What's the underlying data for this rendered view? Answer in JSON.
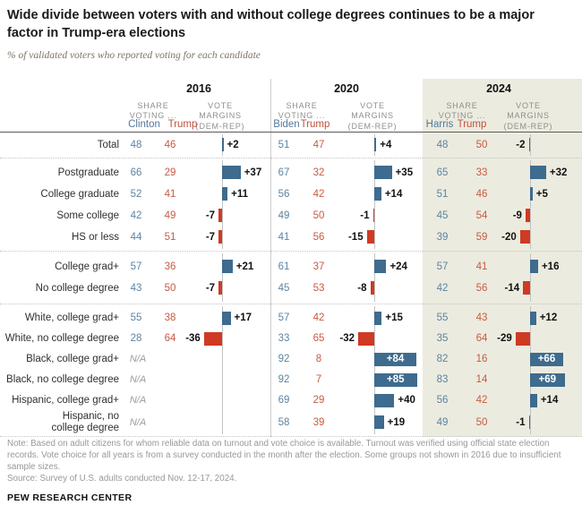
{
  "page": {
    "title": "Wide divide between voters with and without college degrees continues to be a major factor in Trump-era elections",
    "subtitle": "% of validated voters who reported voting for each candidate",
    "note": "Note: Based on adult citizens for whom reliable data on turnout and vote choice is available. Turnout was verified using official state election records. Vote choice for all years is from a survey conducted in the month after the election. Some groups not shown in 2016 due to insufficient sample sizes.",
    "source": "Source: Survey of U.S. adults conducted Nov. 12-17, 2024.",
    "footer": "PEW RESEARCH CENTER"
  },
  "column_headers": {
    "share_line1": "SHARE",
    "share_line2": "VOTING ...",
    "margins_line1": "VOTE",
    "margins_line2": "MARGINS",
    "margins_line3": "(DEM-REP)"
  },
  "colors": {
    "dem_bar": "#3e6b8e",
    "rep_bar": "#cf3a22",
    "dem_text": "#5b84a3",
    "rep_text": "#c75b42",
    "panel_2024_bg": "#ecebdf"
  },
  "chart_data": {
    "type": "table",
    "description": "Diverging bar table: share voting Dem/Rep and vote margin (Dem-Rep) by education group for 2016, 2020, 2024. Values as [dem_share, rep_share, margin]; null = N/A.",
    "na_label": "N/A",
    "years": [
      {
        "label": "2016",
        "dem_candidate": "Clinton",
        "rep_candidate": "Trump"
      },
      {
        "label": "2020",
        "dem_candidate": "Biden",
        "rep_candidate": "Trump"
      },
      {
        "label": "2024",
        "dem_candidate": "Harris",
        "rep_candidate": "Trump"
      }
    ],
    "sections": [
      {
        "rows": [
          {
            "label": "Total",
            "values": [
              [
                48,
                46,
                2
              ],
              [
                51,
                47,
                4
              ],
              [
                48,
                50,
                -2
              ]
            ]
          }
        ]
      },
      {
        "rows": [
          {
            "label": "Postgraduate",
            "values": [
              [
                66,
                29,
                37
              ],
              [
                67,
                32,
                35
              ],
              [
                65,
                33,
                32
              ]
            ]
          },
          {
            "label": "College graduate",
            "values": [
              [
                52,
                41,
                11
              ],
              [
                56,
                42,
                14
              ],
              [
                51,
                46,
                5
              ]
            ]
          },
          {
            "label": "Some college",
            "values": [
              [
                42,
                49,
                -7
              ],
              [
                49,
                50,
                -1
              ],
              [
                45,
                54,
                -9
              ]
            ]
          },
          {
            "label": "HS or less",
            "values": [
              [
                44,
                51,
                -7
              ],
              [
                41,
                56,
                -15
              ],
              [
                39,
                59,
                -20
              ]
            ]
          }
        ]
      },
      {
        "rows": [
          {
            "label": "College grad+",
            "values": [
              [
                57,
                36,
                21
              ],
              [
                61,
                37,
                24
              ],
              [
                57,
                41,
                16
              ]
            ]
          },
          {
            "label": "No college degree",
            "values": [
              [
                43,
                50,
                -7
              ],
              [
                45,
                53,
                -8
              ],
              [
                42,
                56,
                -14
              ]
            ]
          }
        ]
      },
      {
        "rows": [
          {
            "label": "White, college grad+",
            "values": [
              [
                55,
                38,
                17
              ],
              [
                57,
                42,
                15
              ],
              [
                55,
                43,
                12
              ]
            ]
          },
          {
            "label": "White, no college degree",
            "values": [
              [
                28,
                64,
                -36
              ],
              [
                33,
                65,
                -32
              ],
              [
                35,
                64,
                -29
              ]
            ]
          },
          {
            "label": "Black, college grad+",
            "values": [
              null,
              [
                92,
                8,
                84
              ],
              [
                82,
                16,
                66
              ]
            ]
          },
          {
            "label": "Black, no college degree",
            "values": [
              null,
              [
                92,
                7,
                85
              ],
              [
                83,
                14,
                69
              ]
            ]
          },
          {
            "label": "Hispanic, college grad+",
            "values": [
              null,
              [
                69,
                29,
                40
              ],
              [
                56,
                42,
                14
              ]
            ]
          },
          {
            "label": "Hispanic, no college degree",
            "two_line": true,
            "values": [
              null,
              [
                58,
                39,
                19
              ],
              [
                49,
                50,
                -1
              ]
            ]
          }
        ]
      }
    ]
  }
}
